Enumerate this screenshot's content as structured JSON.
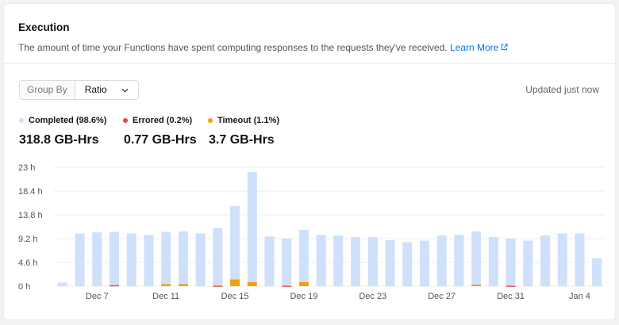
{
  "panel": {
    "title": "Execution",
    "description": "The amount of time your Functions have spent computing responses to the requests they've received.",
    "learn_more": "Learn More"
  },
  "controls": {
    "group_by_label": "Group By",
    "group_by_value": "Ratio",
    "updated": "Updated just now"
  },
  "legend": [
    {
      "label": "Completed (98.6%)",
      "color": "#cfe0fb",
      "total": "318.8 GB-Hrs"
    },
    {
      "label": "Errored (0.2%)",
      "color": "#e5484d",
      "total": "0.77 GB-Hrs"
    },
    {
      "label": "Timeout (1.1%)",
      "color": "#f59e0b",
      "total": "3.7 GB-Hrs"
    }
  ],
  "chart_data": {
    "type": "bar",
    "y_unit": "h",
    "ylim": [
      0,
      23
    ],
    "yticks": [
      "0 h",
      "4.6 h",
      "9.2 h",
      "13.8 h",
      "18.4 h",
      "23 h"
    ],
    "x_tick_labels": [
      {
        "index": 2,
        "label": "Dec 7"
      },
      {
        "index": 6,
        "label": "Dec 11"
      },
      {
        "index": 10,
        "label": "Dec 15"
      },
      {
        "index": 14,
        "label": "Dec 19"
      },
      {
        "index": 18,
        "label": "Dec 23"
      },
      {
        "index": 22,
        "label": "Dec 27"
      },
      {
        "index": 26,
        "label": "Dec 31"
      },
      {
        "index": 30,
        "label": "Jan 4"
      }
    ],
    "series": [
      {
        "name": "Completed",
        "values": [
          0.7,
          10.2,
          10.4,
          10.3,
          10.2,
          9.9,
          10.1,
          10.2,
          10.2,
          11.0,
          14.2,
          21.3,
          9.6,
          9.1,
          10.1,
          9.9,
          9.8,
          9.5,
          9.5,
          8.9,
          8.5,
          8.8,
          9.8,
          9.9,
          10.3,
          9.5,
          9.1,
          8.8,
          9.8,
          10.2,
          10.2,
          5.4
        ]
      },
      {
        "name": "Errored",
        "values": [
          0,
          0,
          0,
          0.2,
          0,
          0,
          0,
          0,
          0,
          0.1,
          0,
          0,
          0,
          0.1,
          0,
          0,
          0,
          0,
          0,
          0,
          0,
          0,
          0,
          0,
          0,
          0,
          0.1,
          0,
          0,
          0,
          0,
          0
        ]
      },
      {
        "name": "Timeout",
        "values": [
          0,
          0,
          0,
          0,
          0,
          0,
          0.4,
          0.4,
          0,
          0.1,
          1.3,
          0.8,
          0,
          0,
          0.8,
          0,
          0,
          0,
          0,
          0,
          0,
          0,
          0,
          0,
          0.3,
          0,
          0,
          0,
          0,
          0,
          0,
          0
        ]
      }
    ],
    "grid": true
  }
}
